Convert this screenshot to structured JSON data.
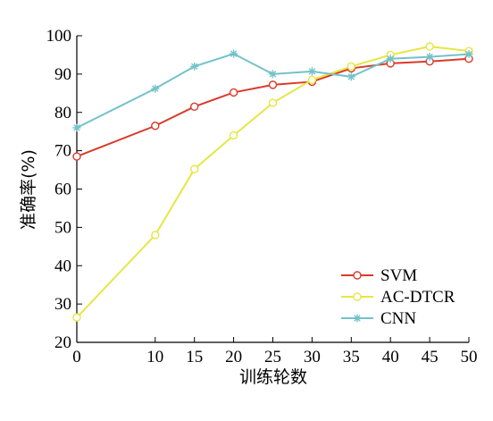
{
  "chart_data": {
    "type": "line",
    "title": "",
    "xlabel": "训练轮数",
    "ylabel": "准确率(%)",
    "xlim": [
      0,
      50
    ],
    "ylim": [
      20,
      100
    ],
    "xticks": [
      "0",
      "10",
      "15",
      "20",
      "25",
      "30",
      "35",
      "40",
      "45",
      "50"
    ],
    "yticks": [
      "20",
      "30",
      "40",
      "50",
      "60",
      "70",
      "80",
      "90",
      "100"
    ],
    "x": [
      0,
      10,
      15,
      20,
      25,
      30,
      35,
      40,
      45,
      50
    ],
    "legend_position": "bottom-right",
    "grid": false,
    "series": [
      {
        "name": "SVM",
        "color": "#d93a2b",
        "marker": "circle",
        "values": [
          68.5,
          76.5,
          81.5,
          85.2,
          87.2,
          88.0,
          91.5,
          92.8,
          93.3,
          94.0
        ]
      },
      {
        "name": "AC-DTCR",
        "color": "#e6e645",
        "marker": "circle",
        "values": [
          26.5,
          48.0,
          65.2,
          74.0,
          82.5,
          88.5,
          92.0,
          95.0,
          97.2,
          96.0
        ]
      },
      {
        "name": "CNN",
        "color": "#73c2c9",
        "marker": "asterisk",
        "values": [
          76.0,
          86.2,
          92.0,
          95.3,
          90.0,
          90.7,
          89.3,
          94.0,
          94.5,
          95.2
        ]
      }
    ]
  }
}
